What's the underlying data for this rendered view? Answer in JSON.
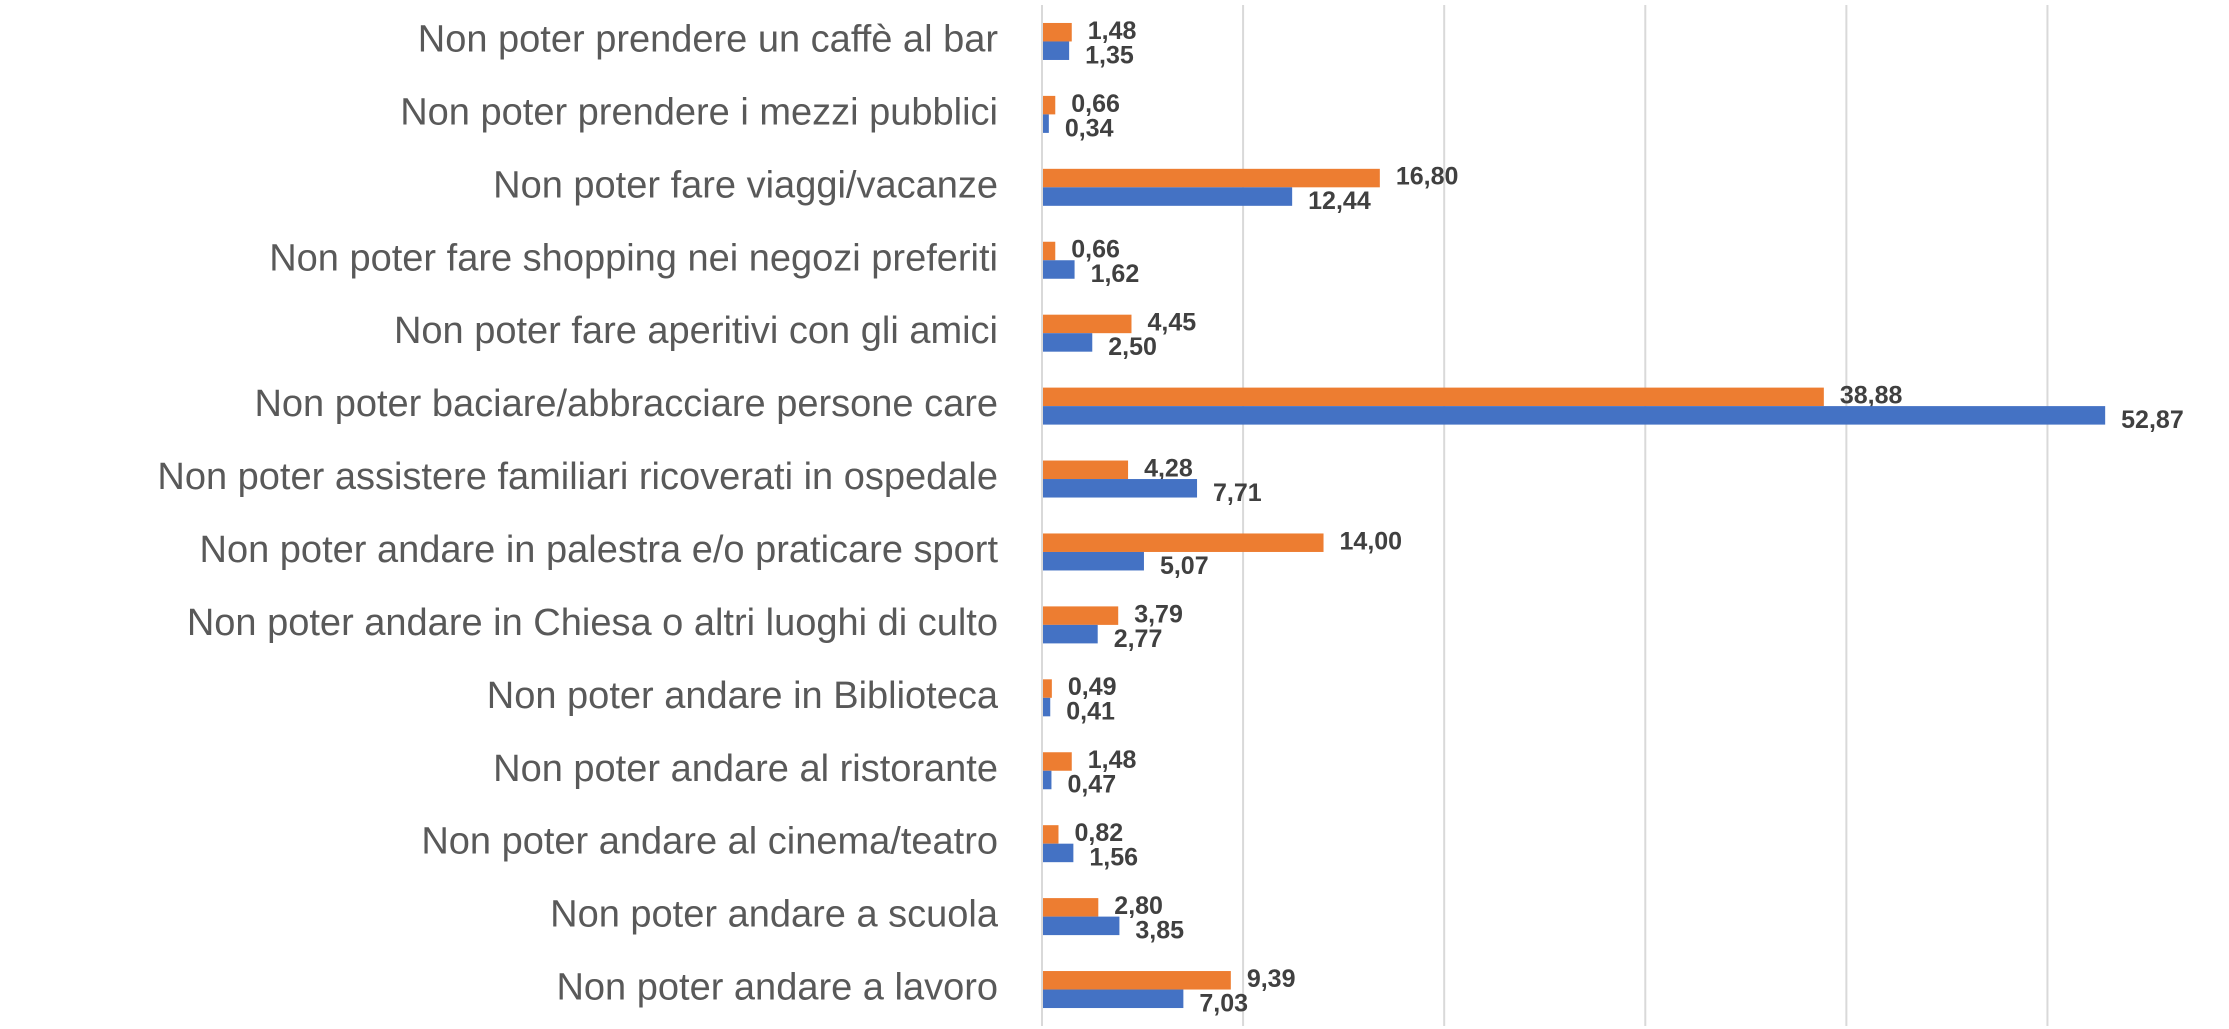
{
  "chart_data": {
    "type": "bar",
    "orientation": "horizontal",
    "categories": [
      "Non poter prendere un caffè al bar",
      "Non poter prendere i mezzi pubblici",
      "Non poter fare viaggi/vacanze",
      "Non poter fare shopping nei negozi preferiti",
      "Non poter fare aperitivi con gli amici",
      "Non poter baciare/abbracciare persone care",
      "Non poter assistere familiari ricoverati in ospedale",
      "Non poter andare in palestra e/o praticare sport",
      "Non poter andare in Chiesa o altri luoghi di culto",
      "Non poter andare in Biblioteca",
      "Non poter andare al ristorante",
      "Non poter andare al cinema/teatro",
      "Non poter andare a scuola",
      "Non poter andare a lavoro"
    ],
    "series": [
      {
        "color": "#ed7d31",
        "values": [
          1.48,
          0.66,
          16.8,
          0.66,
          4.45,
          38.88,
          4.28,
          14.0,
          3.79,
          0.49,
          1.48,
          0.82,
          2.8,
          9.39
        ],
        "value_labels": [
          "1,48",
          "0,66",
          "16,80",
          "0,66",
          "4,45",
          "38,88",
          "4,28",
          "14,00",
          "3,79",
          "0,49",
          "1,48",
          "0,82",
          "2,80",
          "9,39"
        ]
      },
      {
        "color": "#4472c4",
        "values": [
          1.35,
          0.34,
          12.44,
          1.62,
          2.5,
          52.87,
          7.71,
          5.07,
          2.77,
          0.41,
          0.47,
          1.56,
          3.85,
          7.03
        ],
        "value_labels": [
          "1,35",
          "0,34",
          "12,44",
          "1,62",
          "2,50",
          "52,87",
          "7,71",
          "5,07",
          "2,77",
          "0,41",
          "0,47",
          "1,56",
          "3,85",
          "7,03"
        ]
      }
    ],
    "xlim": [
      0,
      55
    ],
    "xticks": [
      0,
      10,
      20,
      30,
      40,
      50
    ],
    "grid": true
  }
}
